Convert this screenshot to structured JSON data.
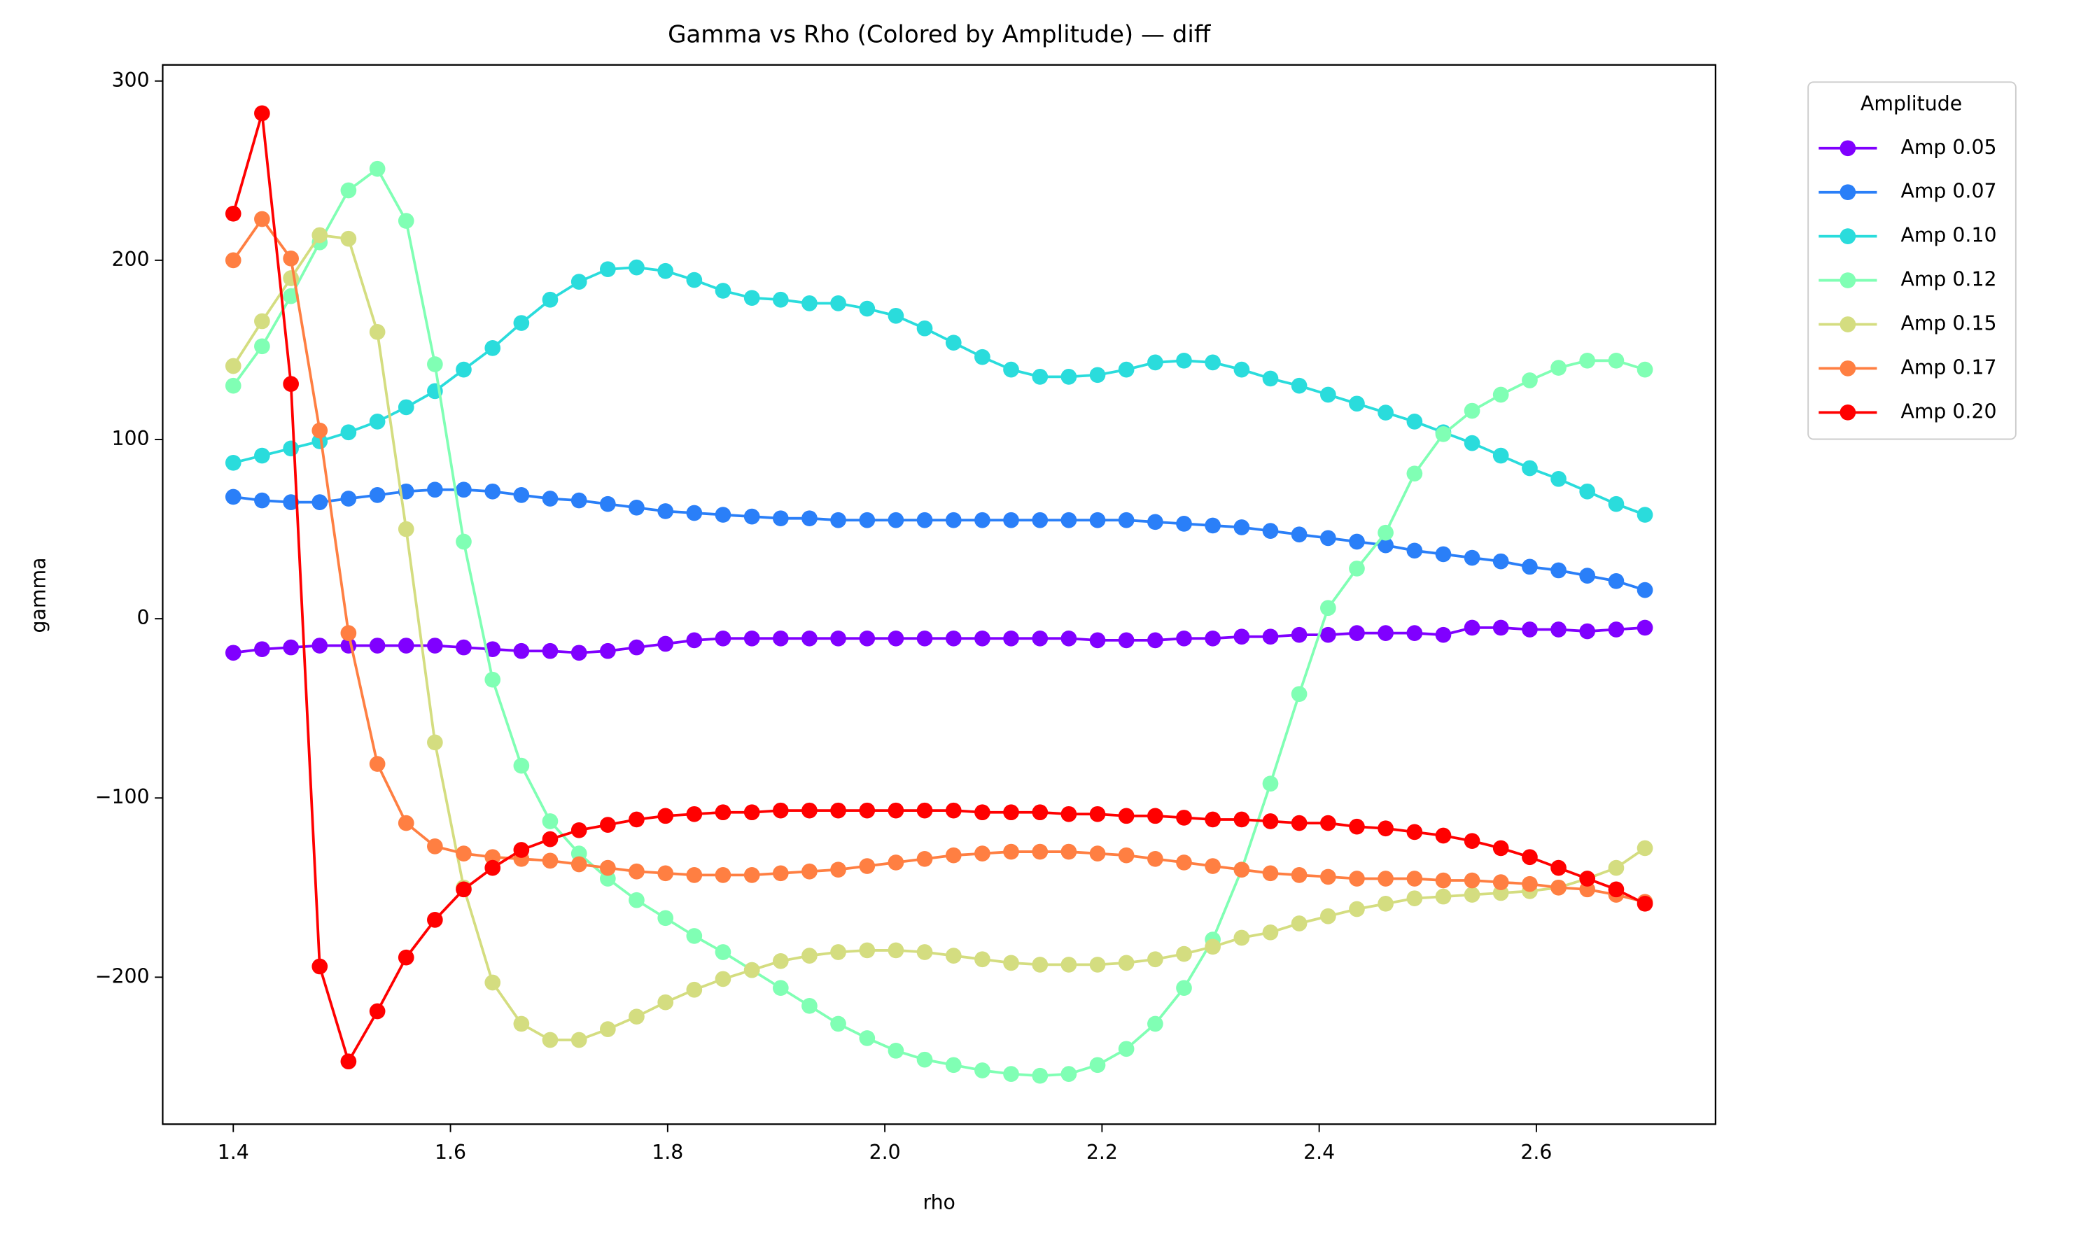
{
  "chart_data": {
    "type": "line",
    "title": "Gamma vs Rho (Colored by Amplitude) — diff",
    "x_label": "rho",
    "y_label": "gamma",
    "legend_title": "Amplitude",
    "legend": "outside upper right",
    "marker": "circle",
    "x": [
      1.4,
      1.4265,
      1.4531,
      1.4796,
      1.5061,
      1.5327,
      1.5592,
      1.5857,
      1.6122,
      1.6388,
      1.6653,
      1.6918,
      1.7184,
      1.7449,
      1.7714,
      1.798,
      1.8245,
      1.851,
      1.8776,
      1.9041,
      1.9306,
      1.9571,
      1.9837,
      2.0102,
      2.0367,
      2.0633,
      2.0898,
      2.1163,
      2.1429,
      2.1694,
      2.1959,
      2.2224,
      2.249,
      2.2755,
      2.302,
      2.3286,
      2.3551,
      2.3816,
      2.4082,
      2.4347,
      2.4612,
      2.4878,
      2.5143,
      2.5408,
      2.5673,
      2.5939,
      2.6204,
      2.6469,
      2.6735,
      2.7
    ],
    "series": [
      {
        "name": "Amp 0.05",
        "color": "#8000ff",
        "values": [
          -19,
          -17,
          -16,
          -15,
          -15,
          -15,
          -15,
          -15,
          -16,
          -17,
          -18,
          -18,
          -19,
          -18,
          -16,
          -14,
          -12,
          -11,
          -11,
          -11,
          -11,
          -11,
          -11,
          -11,
          -11,
          -11,
          -11,
          -11,
          -11,
          -11,
          -12,
          -12,
          -12,
          -11,
          -11,
          -10,
          -10,
          -9,
          -9,
          -8,
          -8,
          -8,
          -9,
          -5,
          -5,
          -6,
          -6,
          -7,
          -6,
          -5
        ]
      },
      {
        "name": "Amp 0.07",
        "color": "#2a7ff8",
        "values": [
          68,
          66,
          65,
          65,
          67,
          69,
          71,
          72,
          72,
          71,
          69,
          67,
          66,
          64,
          62,
          60,
          59,
          58,
          57,
          56,
          56,
          55,
          55,
          55,
          55,
          55,
          55,
          55,
          55,
          55,
          55,
          55,
          54,
          53,
          52,
          51,
          49,
          47,
          45,
          43,
          41,
          38,
          36,
          34,
          32,
          29,
          27,
          24,
          21,
          16
        ]
      },
      {
        "name": "Amp 0.10",
        "color": "#2adcdc",
        "values": [
          87,
          91,
          95,
          99,
          104,
          110,
          118,
          127,
          139,
          151,
          165,
          178,
          188,
          195,
          196,
          194,
          189,
          183,
          179,
          178,
          176,
          176,
          173,
          169,
          162,
          154,
          146,
          139,
          135,
          135,
          136,
          139,
          143,
          144,
          143,
          139,
          134,
          130,
          125,
          120,
          115,
          110,
          104,
          98,
          91,
          84,
          78,
          71,
          64,
          58
        ]
      },
      {
        "name": "Amp 0.12",
        "color": "#80ffb4",
        "values": [
          130,
          152,
          180,
          210,
          239,
          251,
          222,
          142,
          43,
          -34,
          -82,
          -113,
          -131,
          -145,
          -157,
          -167,
          -177,
          -186,
          -196,
          -206,
          -216,
          -226,
          -234,
          -241,
          -246,
          -249,
          -252,
          -254,
          -255,
          -254,
          -249,
          -240,
          -226,
          -206,
          -179,
          -140,
          -92,
          -42,
          6,
          28,
          48,
          81,
          103,
          116,
          125,
          133,
          140,
          144,
          144,
          139
        ]
      },
      {
        "name": "Amp 0.15",
        "color": "#d4dd80",
        "values": [
          141,
          166,
          190,
          214,
          212,
          160,
          50,
          -69,
          -150,
          -203,
          -226,
          -235,
          -235,
          -229,
          -222,
          -214,
          -207,
          -201,
          -196,
          -191,
          -188,
          -186,
          -185,
          -185,
          -186,
          -188,
          -190,
          -192,
          -193,
          -193,
          -193,
          -192,
          -190,
          -187,
          -183,
          -178,
          -175,
          -170,
          -166,
          -162,
          -159,
          -156,
          -155,
          -154,
          -153,
          -152,
          -150,
          -145,
          -139,
          -128
        ]
      },
      {
        "name": "Amp 0.17",
        "color": "#ff7f42",
        "values": [
          200,
          223,
          201,
          105,
          -8,
          -81,
          -114,
          -127,
          -131,
          -133,
          -134,
          -135,
          -137,
          -139,
          -141,
          -142,
          -143,
          -143,
          -143,
          -142,
          -141,
          -140,
          -138,
          -136,
          -134,
          -132,
          -131,
          -130,
          -130,
          -130,
          -131,
          -132,
          -134,
          -136,
          -138,
          -140,
          -142,
          -143,
          -144,
          -145,
          -145,
          -145,
          -146,
          -146,
          -147,
          -148,
          -150,
          -151,
          -154,
          -158
        ]
      },
      {
        "name": "Amp 0.20",
        "color": "#ff0000",
        "values": [
          226,
          282,
          131,
          -194,
          -247,
          -219,
          -189,
          -168,
          -151,
          -139,
          -129,
          -123,
          -118,
          -115,
          -112,
          -110,
          -109,
          -108,
          -108,
          -107,
          -107,
          -107,
          -107,
          -107,
          -107,
          -107,
          -108,
          -108,
          -108,
          -109,
          -109,
          -110,
          -110,
          -111,
          -112,
          -112,
          -113,
          -114,
          -114,
          -116,
          -117,
          -119,
          -121,
          -124,
          -128,
          -133,
          -139,
          -145,
          -151,
          -159
        ]
      }
    ],
    "xlim": [
      1.335,
      2.765
    ],
    "xticks": [
      1.4,
      1.6,
      1.8,
      {
        "value": 2,
        "label": "2.0"
      },
      2.2,
      2.4,
      2.6
    ],
    "ylim": [
      -282,
      309
    ],
    "yticks": [
      {
        "value": -200,
        "label": "−200"
      },
      {
        "value": -100,
        "label": "−100"
      },
      0,
      100,
      200,
      300
    ]
  }
}
